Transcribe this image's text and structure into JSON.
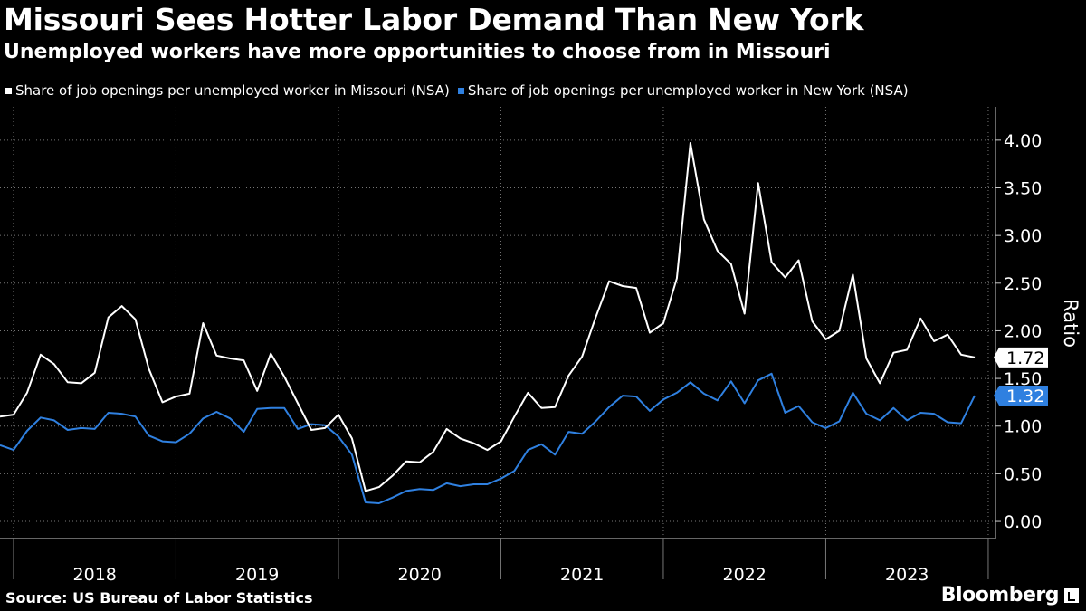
{
  "header": {
    "title": "Missouri Sees Hotter Labor Demand Than New York",
    "subtitle": "Unemployed workers have more opportunities to choose from in Missouri"
  },
  "footer": {
    "source": "Source: US Bureau of Labor Statistics",
    "brand": "Bloomberg"
  },
  "colors": {
    "missouri": "#ffffff",
    "new_york": "#2f80e0",
    "background": "#000000",
    "grid": "#777777"
  },
  "chart_data": {
    "type": "line",
    "title": "Missouri Sees Hotter Labor Demand Than New York",
    "subtitle": "Unemployed workers have more opportunities to choose from in Missouri",
    "xlabel": "",
    "ylabel": "Ratio",
    "ylim": [
      -0.18,
      4.35
    ],
    "yticks": [
      0,
      0.5,
      1.0,
      1.5,
      2.0,
      2.5,
      3.0,
      3.5,
      4.0
    ],
    "ytick_labels": [
      "0.00",
      "0.50",
      "1.00",
      "1.50",
      "2.00",
      "2.50",
      "3.00",
      "3.50",
      "4.00"
    ],
    "grid": true,
    "legend": "top-left",
    "x_start": "2017-12",
    "year_labels": [
      "2018",
      "2019",
      "2020",
      "2021",
      "2022",
      "2023"
    ],
    "series": [
      {
        "name": "Share of job openings per unemployed worker in Missouri (NSA)",
        "color": "#ffffff",
        "end_label": "1.72",
        "values": [
          1.1,
          1.12,
          1.35,
          1.75,
          1.65,
          1.46,
          1.45,
          1.56,
          2.14,
          2.26,
          2.12,
          1.6,
          1.25,
          1.31,
          1.34,
          2.08,
          1.74,
          1.71,
          1.69,
          1.37,
          1.76,
          1.52,
          1.24,
          0.96,
          0.98,
          1.12,
          0.87,
          0.32,
          0.36,
          0.48,
          0.63,
          0.62,
          0.73,
          0.97,
          0.87,
          0.82,
          0.75,
          0.84,
          1.1,
          1.35,
          1.19,
          1.2,
          1.53,
          1.73,
          2.14,
          2.52,
          2.47,
          2.45,
          1.98,
          2.08,
          2.55,
          3.97,
          3.17,
          2.84,
          2.7,
          2.18,
          3.55,
          2.72,
          2.56,
          2.74,
          2.1,
          1.91,
          2.0,
          2.59,
          1.71,
          1.45,
          1.77,
          1.8,
          2.13,
          1.89,
          1.96,
          1.75,
          1.72
        ]
      },
      {
        "name": "Share of job openings per unemployed worker in New York (NSA)",
        "color": "#2f80e0",
        "end_label": "1.32",
        "values": [
          0.8,
          0.75,
          0.95,
          1.09,
          1.06,
          0.96,
          0.98,
          0.97,
          1.14,
          1.13,
          1.1,
          0.9,
          0.84,
          0.83,
          0.92,
          1.08,
          1.15,
          1.08,
          0.94,
          1.18,
          1.19,
          1.19,
          0.97,
          1.02,
          1.01,
          0.89,
          0.7,
          0.2,
          0.19,
          0.25,
          0.32,
          0.34,
          0.33,
          0.4,
          0.37,
          0.39,
          0.39,
          0.45,
          0.53,
          0.75,
          0.81,
          0.7,
          0.94,
          0.92,
          1.05,
          1.2,
          1.32,
          1.31,
          1.16,
          1.28,
          1.35,
          1.46,
          1.34,
          1.27,
          1.47,
          1.24,
          1.48,
          1.55,
          1.14,
          1.21,
          1.04,
          0.98,
          1.05,
          1.35,
          1.13,
          1.06,
          1.19,
          1.06,
          1.14,
          1.13,
          1.04,
          1.03,
          1.32
        ]
      }
    ]
  }
}
